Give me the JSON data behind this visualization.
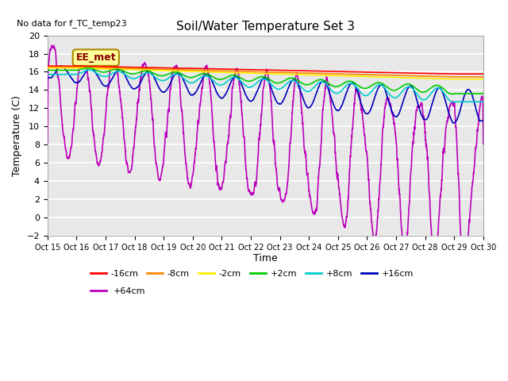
{
  "title": "Soil/Water Temperature Set 3",
  "no_data_text": "No data for f_TC_temp23",
  "xlabel": "Time",
  "ylabel": "Temperature (C)",
  "xlim": [
    0,
    15
  ],
  "ylim": [
    -2,
    20
  ],
  "yticks": [
    -2,
    0,
    2,
    4,
    6,
    8,
    10,
    12,
    14,
    16,
    18,
    20
  ],
  "xtick_labels": [
    "Oct 15",
    "Oct 16",
    "Oct 17",
    "Oct 18",
    "Oct 19",
    "Oct 20",
    "Oct 21",
    "Oct 22",
    "Oct 23",
    "Oct 24",
    "Oct 25",
    "Oct 26",
    "Oct 27",
    "Oct 28",
    "Oct 29",
    "Oct 30"
  ],
  "ee_met_label": "EE_met",
  "ee_met_box_color": "#ffff99",
  "ee_met_text_color": "#880000",
  "plot_bg_color": "#e8e8e8",
  "grid_color": "#ffffff",
  "series_colors": {
    "-16cm": "#ff0000",
    "-8cm": "#ff8800",
    "-2cm": "#ffee00",
    "+2cm": "#00cc00",
    "+8cm": "#00cccc",
    "+16cm": "#0000bb",
    "+64cm": "#bb00bb"
  },
  "series_order": [
    "-16cm",
    "-8cm",
    "-2cm",
    "+2cm",
    "+8cm",
    "+16cm",
    "+64cm"
  ],
  "legend_row1": [
    "-16cm",
    "-8cm",
    "-2cm",
    "+2cm",
    "+8cm",
    "+16cm"
  ],
  "legend_row2": [
    "+64cm"
  ]
}
